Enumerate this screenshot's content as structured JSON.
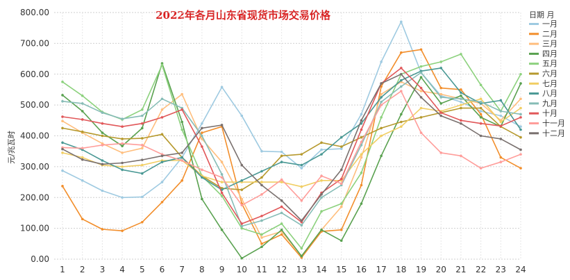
{
  "chart_data": {
    "type": "line",
    "title": "2022年各月山东省现货市场交易价格",
    "xlabel": "",
    "ylabel": "元/兆瓦时",
    "x": [
      1,
      2,
      3,
      4,
      5,
      6,
      7,
      8,
      9,
      10,
      11,
      12,
      13,
      14,
      15,
      16,
      17,
      18,
      19,
      20,
      21,
      22,
      23,
      24
    ],
    "ylim": [
      0,
      800
    ],
    "yticks": [
      "0.00",
      "100.00",
      "200.00",
      "300.00",
      "400.00",
      "500.00",
      "600.00",
      "700.00",
      "800.00"
    ],
    "grid": true,
    "legend_title": "日期 月",
    "legend_position": "right",
    "series": [
      {
        "name": "一月",
        "color": "#9ecae1",
        "values": [
          287,
          255,
          222,
          200,
          202,
          250,
          330,
          440,
          558,
          465,
          350,
          348,
          295,
          355,
          358,
          470,
          640,
          770,
          605,
          530,
          510,
          480,
          465,
          430
        ]
      },
      {
        "name": "二月",
        "color": "#f28e2b",
        "values": [
          237,
          130,
          97,
          92,
          120,
          185,
          255,
          410,
          430,
          180,
          50,
          80,
          5,
          90,
          95,
          240,
          560,
          670,
          680,
          555,
          550,
          470,
          330,
          295
        ]
      },
      {
        "name": "三月",
        "color": "#ffbe7d",
        "values": [
          448,
          410,
          375,
          345,
          360,
          485,
          535,
          390,
          315,
          195,
          70,
          90,
          10,
          95,
          170,
          330,
          535,
          575,
          545,
          535,
          520,
          505,
          450,
          520
        ]
      },
      {
        "name": "四月",
        "color": "#59a14f",
        "values": [
          532,
          480,
          410,
          367,
          425,
          635,
          445,
          195,
          95,
          3,
          40,
          95,
          10,
          95,
          60,
          180,
          335,
          470,
          590,
          505,
          530,
          460,
          430,
          570
        ]
      },
      {
        "name": "五月",
        "color": "#8cd17d",
        "values": [
          575,
          530,
          477,
          453,
          485,
          630,
          420,
          270,
          205,
          100,
          80,
          115,
          35,
          155,
          180,
          280,
          460,
          600,
          625,
          640,
          665,
          565,
          480,
          600
        ]
      },
      {
        "name": "六月",
        "color": "#b6992d",
        "values": [
          425,
          413,
          400,
          390,
          392,
          405,
          330,
          270,
          230,
          225,
          265,
          335,
          340,
          378,
          365,
          395,
          425,
          445,
          460,
          475,
          490,
          490,
          430,
          395
        ]
      },
      {
        "name": "七月",
        "color": "#f1ce63",
        "values": [
          345,
          330,
          305,
          300,
          305,
          320,
          320,
          270,
          250,
          250,
          250,
          250,
          235,
          255,
          255,
          340,
          400,
          430,
          490,
          480,
          500,
          520,
          445,
          490
        ]
      },
      {
        "name": "八月",
        "color": "#499894",
        "values": [
          378,
          355,
          320,
          290,
          278,
          315,
          330,
          265,
          225,
          255,
          285,
          315,
          305,
          340,
          395,
          440,
          525,
          580,
          610,
          620,
          540,
          505,
          515,
          420
        ]
      },
      {
        "name": "九月",
        "color": "#86bcb6",
        "values": [
          512,
          505,
          475,
          455,
          465,
          520,
          490,
          400,
          275,
          107,
          125,
          150,
          110,
          200,
          240,
          370,
          510,
          560,
          605,
          525,
          520,
          510,
          480,
          470
        ]
      },
      {
        "name": "十月",
        "color": "#e15759",
        "values": [
          462,
          453,
          440,
          430,
          440,
          460,
          485,
          365,
          215,
          115,
          140,
          170,
          120,
          215,
          260,
          420,
          570,
          620,
          555,
          475,
          450,
          440,
          432,
          460
        ]
      },
      {
        "name": "十一月",
        "color": "#ff9d9a",
        "values": [
          362,
          360,
          370,
          375,
          370,
          340,
          320,
          290,
          265,
          175,
          210,
          258,
          190,
          270,
          245,
          380,
          500,
          545,
          410,
          345,
          335,
          295,
          315,
          340
        ]
      },
      {
        "name": "十二月",
        "color": "#79706e",
        "values": [
          357,
          323,
          308,
          312,
          322,
          335,
          345,
          425,
          435,
          305,
          240,
          190,
          125,
          210,
          290,
          450,
          570,
          600,
          525,
          465,
          440,
          400,
          390,
          355
        ]
      }
    ]
  }
}
